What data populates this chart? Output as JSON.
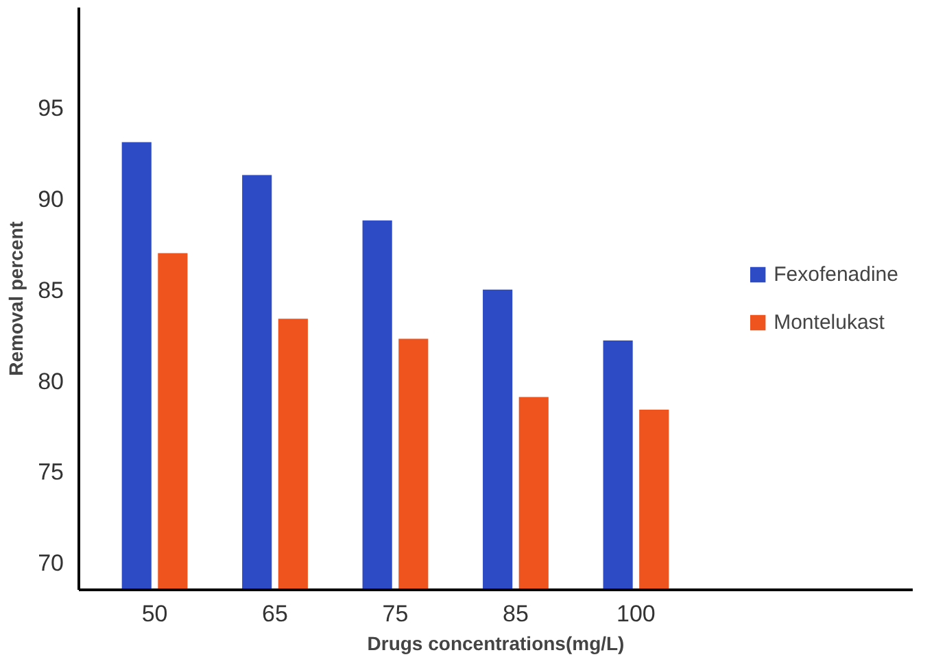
{
  "chart_data": {
    "type": "bar",
    "xlabel": "Drugs concentrations(mg/L)",
    "ylabel": "Removal percent",
    "categories": [
      "50",
      "65",
      "75",
      "85",
      "100"
    ],
    "series": [
      {
        "name": "Fexofenadine",
        "color": "#2e4bc6",
        "values": [
          93.1,
          91.3,
          88.8,
          85.0,
          82.2
        ]
      },
      {
        "name": "Montelukast",
        "color": "#f0541e",
        "values": [
          87.0,
          83.4,
          82.3,
          79.1,
          78.4
        ]
      }
    ],
    "ylim": [
      68.5,
      100.5
    ],
    "yticks": [
      70,
      75,
      80,
      85,
      90,
      95
    ],
    "grid": false,
    "legend": "right"
  }
}
